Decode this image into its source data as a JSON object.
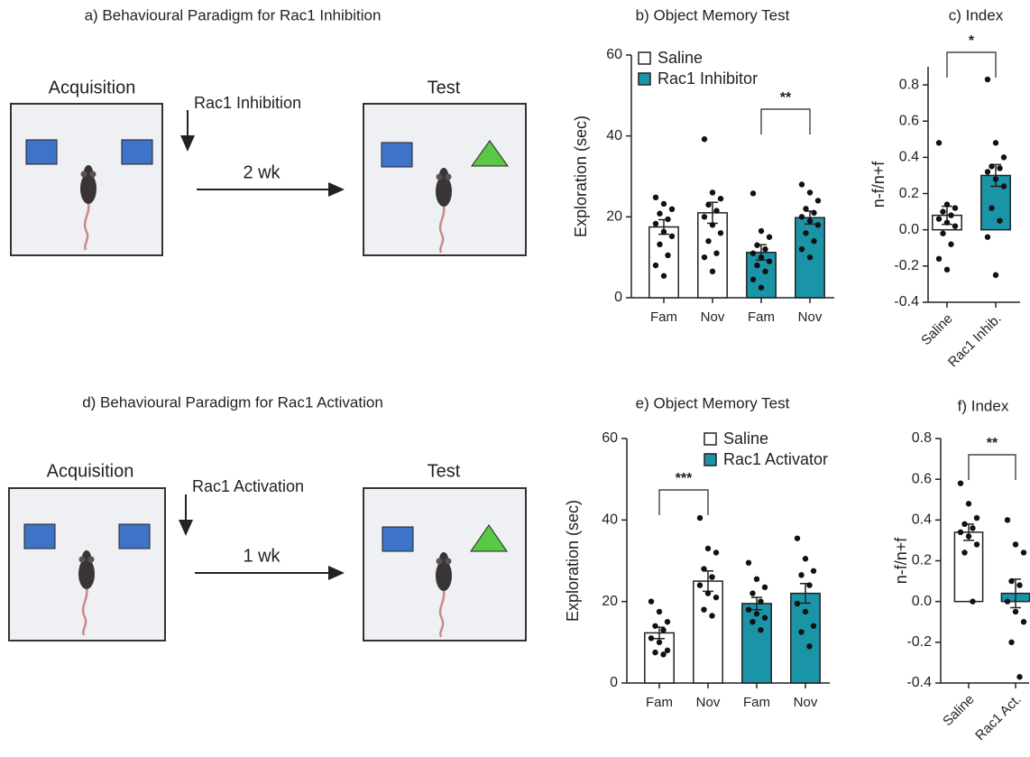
{
  "diagrams": [
    {
      "title": "a) Behavioural Paradigm for Rac1 Inhibition",
      "left_label": "Acquisition",
      "treatment": "Rac1 Inhibition",
      "interval": "2 wk",
      "right_label": "Test"
    },
    {
      "title": "d) Behavioural Paradigm for Rac1 Activation",
      "left_label": "Acquisition",
      "treatment": "Rac1 Activation",
      "interval": "1 wk",
      "right_label": "Test"
    }
  ],
  "chart_data": [
    {
      "type": "bar",
      "title": "b) Object Memory Test",
      "ylabel": "Exploration (sec)",
      "categories": [
        "Fam",
        "Nov",
        "Fam",
        "Nov"
      ],
      "ylim": [
        0,
        60
      ],
      "yticks": [
        0,
        20,
        40,
        60
      ],
      "legend": "top-left",
      "series": [
        {
          "name": "Saline",
          "color": "#ffffff",
          "values": [
            17.5,
            21,
            null,
            null
          ],
          "errors": [
            1.8,
            2.6,
            null,
            null
          ],
          "points": [
            [
              24.8,
              23.2,
              21.9,
              20.8,
              19.4,
              18.3,
              16.3,
              15.2,
              13.2,
              10.5,
              8.0,
              5.4
            ],
            [
              39.2,
              26,
              24.5,
              23,
              21.5,
              20,
              18,
              16,
              14,
              11,
              10,
              6.5
            ],
            [],
            []
          ]
        },
        {
          "name": "Rac1 Inhibitor",
          "color": "#1b94a8",
          "values": [
            null,
            null,
            11.2,
            19.8
          ],
          "errors": [
            null,
            null,
            1.9,
            1.6
          ],
          "points": [
            [],
            [],
            [
              25.8,
              16.5,
              15,
              13,
              12,
              11,
              10,
              9,
              8,
              6.5,
              4.5,
              2.5
            ],
            [
              28,
              26,
              24,
              22,
              21,
              20,
              19,
              18,
              16,
              14,
              12,
              10
            ]
          ]
        }
      ],
      "significance": [
        {
          "from": 2,
          "to": 3,
          "label": "**"
        }
      ]
    },
    {
      "type": "bar",
      "title": "c) Index",
      "ylabel": "n-f/n+f",
      "categories": [
        "Saline",
        "Rac1 Inhib."
      ],
      "ylim": [
        -0.4,
        0.9
      ],
      "yticks": [
        -0.4,
        -0.2,
        {
          "value": 0,
          "label": "0.0"
        },
        0.2,
        0.4,
        0.6,
        0.8
      ],
      "xtick_rotation": -45,
      "series": [
        {
          "name": "Saline",
          "color": "#ffffff",
          "values": [
            0.08,
            null
          ],
          "errors": [
            0.05,
            null
          ],
          "points": [
            [
              0.48,
              0.14,
              0.12,
              0.1,
              0.08,
              0.06,
              0.04,
              0.02,
              -0.02,
              -0.08,
              -0.16,
              -0.22
            ],
            []
          ]
        },
        {
          "name": "Rac1 Inhibitor",
          "color": "#1b94a8",
          "values": [
            null,
            0.3
          ],
          "errors": [
            null,
            0.06
          ],
          "points": [
            [],
            [
              0.83,
              0.48,
              0.4,
              0.35,
              0.34,
              0.32,
              0.28,
              0.24,
              0.12,
              0.05,
              -0.04,
              -0.25
            ]
          ]
        }
      ],
      "significance": [
        {
          "from": 0,
          "to": 1,
          "label": "*"
        }
      ]
    },
    {
      "type": "bar",
      "title": "e) Object Memory Test",
      "ylabel": "Exploration (sec)",
      "categories": [
        "Fam",
        "Nov",
        "Fam",
        "Nov"
      ],
      "ylim": [
        0,
        60
      ],
      "yticks": [
        0,
        20,
        40,
        60
      ],
      "legend": "top-right",
      "series": [
        {
          "name": "Saline",
          "color": "#ffffff",
          "values": [
            12.3,
            25,
            null,
            null
          ],
          "errors": [
            1.4,
            2.5,
            null,
            null
          ],
          "points": [
            [
              20,
              17.5,
              15,
              14,
              13,
              11,
              10,
              8,
              7.5,
              7
            ],
            [
              40.5,
              33,
              32,
              28,
              26,
              24,
              22,
              21,
              18,
              16.5
            ],
            [],
            []
          ]
        },
        {
          "name": "Rac1 Activator",
          "color": "#1b94a8",
          "values": [
            null,
            null,
            19.5,
            22
          ],
          "errors": [
            null,
            null,
            1.5,
            2.4
          ],
          "points": [
            [],
            [],
            [
              29.5,
              25.5,
              23.5,
              22,
              20,
              18,
              17,
              16,
              15,
              13
            ],
            [
              35.5,
              30.5,
              27.5,
              26.5,
              24,
              19.5,
              17.5,
              14,
              12.5,
              9
            ]
          ]
        }
      ],
      "significance": [
        {
          "from": 0,
          "to": 1,
          "label": "***"
        }
      ]
    },
    {
      "type": "bar",
      "title": "f) Index",
      "ylabel": "n-f/n+f",
      "categories": [
        "Saline",
        "Rac1 Act."
      ],
      "ylim": [
        -0.4,
        0.8
      ],
      "yticks": [
        -0.4,
        -0.2,
        {
          "value": 0,
          "label": "0.0"
        },
        0.2,
        0.4,
        0.6,
        0.8
      ],
      "xtick_rotation": -45,
      "series": [
        {
          "name": "Saline",
          "color": "#ffffff",
          "values": [
            0.34,
            null
          ],
          "errors": [
            0.04,
            null
          ],
          "points": [
            [
              0.58,
              0.48,
              0.41,
              0.38,
              0.36,
              0.34,
              0.32,
              0.28,
              0.24,
              0.0
            ],
            []
          ]
        },
        {
          "name": "Rac1 Activator",
          "color": "#1b94a8",
          "values": [
            null,
            0.04
          ],
          "errors": [
            null,
            0.07
          ],
          "points": [
            [],
            [
              0.4,
              0.28,
              0.24,
              0.1,
              0.08,
              0.0,
              -0.05,
              -0.1,
              -0.2,
              -0.37
            ]
          ]
        }
      ],
      "significance": [
        {
          "from": 0,
          "to": 1,
          "label": "**"
        }
      ]
    }
  ]
}
